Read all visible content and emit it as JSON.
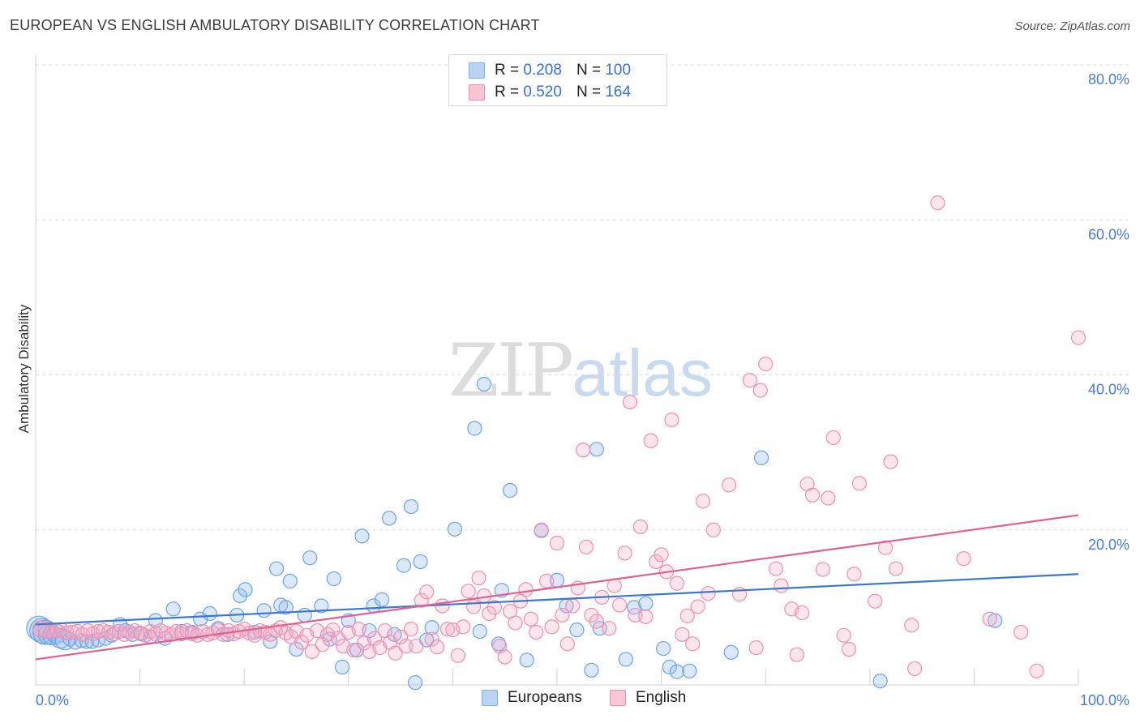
{
  "header": {
    "title": "EUROPEAN VS ENGLISH AMBULATORY DISABILITY CORRELATION CHART",
    "source": "Source: ZipAtlas.com"
  },
  "watermark": {
    "zip": "ZIP",
    "atlas": "atlas"
  },
  "legend": {
    "r_label": "R =",
    "n_label": "N =",
    "rows": [
      {
        "name": "Europeans",
        "r": "0.208",
        "n": "100",
        "color": "#7fb0ea",
        "fill": "#b9d3f5"
      },
      {
        "name": "English",
        "r": "0.520",
        "n": "164",
        "color": "#f08cb0",
        "fill": "#f9c6d6"
      }
    ]
  },
  "chart_data": {
    "type": "scatter",
    "title": "EUROPEAN VS ENGLISH AMBULATORY DISABILITY CORRELATION CHART",
    "xlabel": "",
    "ylabel": "Ambulatory Disability",
    "xlim": [
      0,
      100
    ],
    "ylim": [
      0,
      80
    ],
    "x_tick_labels": [
      "0.0%",
      "100.0%"
    ],
    "y_tick_labels": [
      "20.0%",
      "40.0%",
      "60.0%",
      "80.0%"
    ],
    "y_ticks": [
      20,
      40,
      60,
      80
    ],
    "grid": "horizontal dashed",
    "series": [
      {
        "name": "Europeans",
        "color": "#3a78d0",
        "trend": {
          "x0": 0,
          "y0": 7.8,
          "x1": 100,
          "y1": 14.3
        },
        "points": [
          [
            0.3,
            7.3
          ],
          [
            0.6,
            7.0
          ],
          [
            0.9,
            6.8
          ],
          [
            1.2,
            6.5
          ],
          [
            1.6,
            6.4
          ],
          [
            2.0,
            6.6
          ],
          [
            2.4,
            6.0
          ],
          [
            2.8,
            5.8
          ],
          [
            3.3,
            5.9
          ],
          [
            3.8,
            5.5
          ],
          [
            4.4,
            5.7
          ],
          [
            4.9,
            5.6
          ],
          [
            5.4,
            5.6
          ],
          [
            6.0,
            5.8
          ],
          [
            6.7,
            6.0
          ],
          [
            7.3,
            6.4
          ],
          [
            8.1,
            7.8
          ],
          [
            8.6,
            7.0
          ],
          [
            9.3,
            6.5
          ],
          [
            10.1,
            6.6
          ],
          [
            11.0,
            6.2
          ],
          [
            11.5,
            8.3
          ],
          [
            12.4,
            6.0
          ],
          [
            13.2,
            9.8
          ],
          [
            14.0,
            6.9
          ],
          [
            15.0,
            6.8
          ],
          [
            15.8,
            8.5
          ],
          [
            16.7,
            9.2
          ],
          [
            17.5,
            7.3
          ],
          [
            18.4,
            6.5
          ],
          [
            19.3,
            9.0
          ],
          [
            19.6,
            11.5
          ],
          [
            20.1,
            12.3
          ],
          [
            21.0,
            6.8
          ],
          [
            21.9,
            9.6
          ],
          [
            22.5,
            5.6
          ],
          [
            23.1,
            15.0
          ],
          [
            23.5,
            10.3
          ],
          [
            24.0,
            10.0
          ],
          [
            24.4,
            13.4
          ],
          [
            25.0,
            4.6
          ],
          [
            25.8,
            9.0
          ],
          [
            26.3,
            16.4
          ],
          [
            27.4,
            10.2
          ],
          [
            28.2,
            5.9
          ],
          [
            28.6,
            13.7
          ],
          [
            29.4,
            2.3
          ],
          [
            30.0,
            8.3
          ],
          [
            30.8,
            4.5
          ],
          [
            31.3,
            19.2
          ],
          [
            32.0,
            7.0
          ],
          [
            32.4,
            10.2
          ],
          [
            33.2,
            11.0
          ],
          [
            33.9,
            21.5
          ],
          [
            34.4,
            6.5
          ],
          [
            35.3,
            15.4
          ],
          [
            36.0,
            23.0
          ],
          [
            36.4,
            0.3
          ],
          [
            36.9,
            15.9
          ],
          [
            37.5,
            5.8
          ],
          [
            38.0,
            7.4
          ],
          [
            40.2,
            20.1
          ],
          [
            42.1,
            33.1
          ],
          [
            42.6,
            6.9
          ],
          [
            43.0,
            38.8
          ],
          [
            44.4,
            5.3
          ],
          [
            44.7,
            12.2
          ],
          [
            45.5,
            25.1
          ],
          [
            47.1,
            3.2
          ],
          [
            48.5,
            19.9
          ],
          [
            50.0,
            13.5
          ],
          [
            50.9,
            10.2
          ],
          [
            51.9,
            7.1
          ],
          [
            53.3,
            1.9
          ],
          [
            53.8,
            30.4
          ],
          [
            54.1,
            7.3
          ],
          [
            56.6,
            3.3
          ],
          [
            57.4,
            10.0
          ],
          [
            58.5,
            10.5
          ],
          [
            60.2,
            4.7
          ],
          [
            60.8,
            2.3
          ],
          [
            61.5,
            1.7
          ],
          [
            62.7,
            1.8
          ],
          [
            66.7,
            4.2
          ],
          [
            69.6,
            29.3
          ],
          [
            81.0,
            0.5
          ],
          [
            92.0,
            8.3
          ]
        ]
      },
      {
        "name": "English",
        "color": "#e0608f",
        "trend": {
          "x0": 0,
          "y0": 3.3,
          "x1": 100,
          "y1": 21.9
        },
        "points": [
          [
            0.5,
            7.2
          ],
          [
            1.0,
            7.1
          ],
          [
            1.5,
            6.9
          ],
          [
            2.0,
            7.0
          ],
          [
            2.5,
            7.1
          ],
          [
            3.0,
            6.7
          ],
          [
            3.5,
            6.8
          ],
          [
            4.0,
            6.9
          ],
          [
            4.5,
            6.5
          ],
          [
            5.0,
            7.0
          ],
          [
            5.5,
            6.6
          ],
          [
            6.0,
            6.9
          ],
          [
            6.5,
            7.0
          ],
          [
            7.0,
            6.8
          ],
          [
            7.5,
            6.6
          ],
          [
            8.0,
            6.9
          ],
          [
            8.5,
            6.5
          ],
          [
            9.0,
            6.8
          ],
          [
            9.5,
            7.0
          ],
          [
            10.0,
            6.7
          ],
          [
            10.5,
            6.4
          ],
          [
            11.0,
            6.9
          ],
          [
            11.5,
            6.6
          ],
          [
            12.0,
            7.0
          ],
          [
            12.5,
            6.7
          ],
          [
            13.0,
            6.5
          ],
          [
            13.5,
            6.9
          ],
          [
            14.0,
            6.6
          ],
          [
            14.5,
            7.0
          ],
          [
            15.0,
            6.6
          ],
          [
            15.5,
            6.4
          ],
          [
            16.0,
            6.9
          ],
          [
            16.5,
            6.5
          ],
          [
            17.0,
            6.7
          ],
          [
            17.5,
            7.1
          ],
          [
            18.0,
            6.5
          ],
          [
            18.5,
            7.0
          ],
          [
            19.0,
            6.6
          ],
          [
            19.5,
            6.9
          ],
          [
            20.0,
            7.2
          ],
          [
            20.5,
            6.7
          ],
          [
            21.0,
            6.4
          ],
          [
            21.5,
            7.0
          ],
          [
            22.0,
            6.8
          ],
          [
            22.5,
            6.5
          ],
          [
            23.0,
            7.0
          ],
          [
            23.5,
            7.4
          ],
          [
            24.0,
            6.7
          ],
          [
            24.5,
            6.2
          ],
          [
            25.0,
            6.9
          ],
          [
            25.5,
            5.5
          ],
          [
            26.0,
            6.4
          ],
          [
            26.5,
            4.3
          ],
          [
            27.0,
            7.0
          ],
          [
            27.5,
            5.2
          ],
          [
            28.0,
            6.5
          ],
          [
            28.5,
            7.1
          ],
          [
            29.0,
            6.0
          ],
          [
            29.5,
            5.0
          ],
          [
            30.0,
            6.8
          ],
          [
            30.5,
            4.5
          ],
          [
            31.0,
            7.2
          ],
          [
            31.5,
            5.4
          ],
          [
            32.0,
            4.3
          ],
          [
            32.5,
            6.0
          ],
          [
            33.0,
            4.8
          ],
          [
            33.5,
            7.0
          ],
          [
            34.0,
            5.5
          ],
          [
            34.5,
            4.1
          ],
          [
            35.0,
            6.2
          ],
          [
            35.5,
            5.0
          ],
          [
            36.0,
            7.2
          ],
          [
            36.5,
            5.0
          ],
          [
            37.0,
            10.9
          ],
          [
            37.5,
            12.0
          ],
          [
            38.0,
            5.9
          ],
          [
            38.5,
            4.9
          ],
          [
            39.0,
            10.2
          ],
          [
            39.5,
            7.2
          ],
          [
            40.0,
            7.1
          ],
          [
            40.5,
            3.8
          ],
          [
            41.0,
            7.5
          ],
          [
            41.5,
            12.1
          ],
          [
            42.0,
            10.1
          ],
          [
            42.5,
            13.8
          ],
          [
            43.0,
            11.5
          ],
          [
            43.5,
            9.2
          ],
          [
            44.0,
            10.0
          ],
          [
            44.5,
            5.0
          ],
          [
            45.0,
            3.6
          ],
          [
            45.5,
            9.5
          ],
          [
            46.0,
            8.0
          ],
          [
            46.5,
            10.8
          ],
          [
            47.0,
            12.3
          ],
          [
            47.5,
            8.5
          ],
          [
            48.0,
            6.8
          ],
          [
            48.5,
            20.0
          ],
          [
            49.0,
            13.4
          ],
          [
            49.5,
            7.5
          ],
          [
            50.0,
            18.3
          ],
          [
            50.5,
            9.0
          ],
          [
            51.0,
            5.3
          ],
          [
            51.5,
            10.2
          ],
          [
            52.0,
            12.5
          ],
          [
            52.5,
            30.3
          ],
          [
            52.8,
            17.8
          ],
          [
            53.3,
            9.0
          ],
          [
            53.8,
            8.2
          ],
          [
            54.3,
            11.3
          ],
          [
            55.0,
            7.3
          ],
          [
            55.5,
            12.8
          ],
          [
            56.0,
            10.3
          ],
          [
            56.5,
            17.0
          ],
          [
            57.0,
            36.5
          ],
          [
            57.5,
            9.0
          ],
          [
            58.0,
            20.4
          ],
          [
            58.5,
            8.8
          ],
          [
            59.0,
            31.5
          ],
          [
            59.5,
            15.9
          ],
          [
            60.0,
            16.8
          ],
          [
            60.5,
            14.6
          ],
          [
            61.0,
            34.2
          ],
          [
            61.5,
            13.1
          ],
          [
            62.0,
            6.5
          ],
          [
            62.5,
            8.9
          ],
          [
            63.0,
            5.3
          ],
          [
            63.5,
            10.1
          ],
          [
            64.0,
            23.7
          ],
          [
            64.5,
            11.8
          ],
          [
            65.0,
            20.0
          ],
          [
            66.5,
            25.8
          ],
          [
            67.5,
            11.7
          ],
          [
            68.5,
            39.3
          ],
          [
            69.1,
            4.8
          ],
          [
            69.5,
            38.0
          ],
          [
            70.0,
            41.4
          ],
          [
            71.0,
            15.0
          ],
          [
            71.5,
            12.8
          ],
          [
            72.5,
            9.8
          ],
          [
            73.0,
            3.9
          ],
          [
            73.5,
            9.3
          ],
          [
            74.0,
            25.9
          ],
          [
            74.5,
            24.5
          ],
          [
            75.5,
            14.9
          ],
          [
            76.0,
            24.1
          ],
          [
            76.5,
            31.9
          ],
          [
            77.5,
            6.4
          ],
          [
            78.0,
            4.6
          ],
          [
            78.5,
            14.3
          ],
          [
            79.0,
            26.0
          ],
          [
            80.5,
            10.8
          ],
          [
            81.5,
            17.7
          ],
          [
            82.0,
            28.8
          ],
          [
            82.5,
            15.0
          ],
          [
            84.0,
            7.7
          ],
          [
            84.3,
            2.1
          ],
          [
            86.5,
            62.2
          ],
          [
            89.0,
            16.3
          ],
          [
            91.5,
            8.5
          ],
          [
            94.5,
            6.8
          ],
          [
            96.0,
            1.8
          ],
          [
            100.0,
            44.8
          ]
        ]
      }
    ]
  }
}
